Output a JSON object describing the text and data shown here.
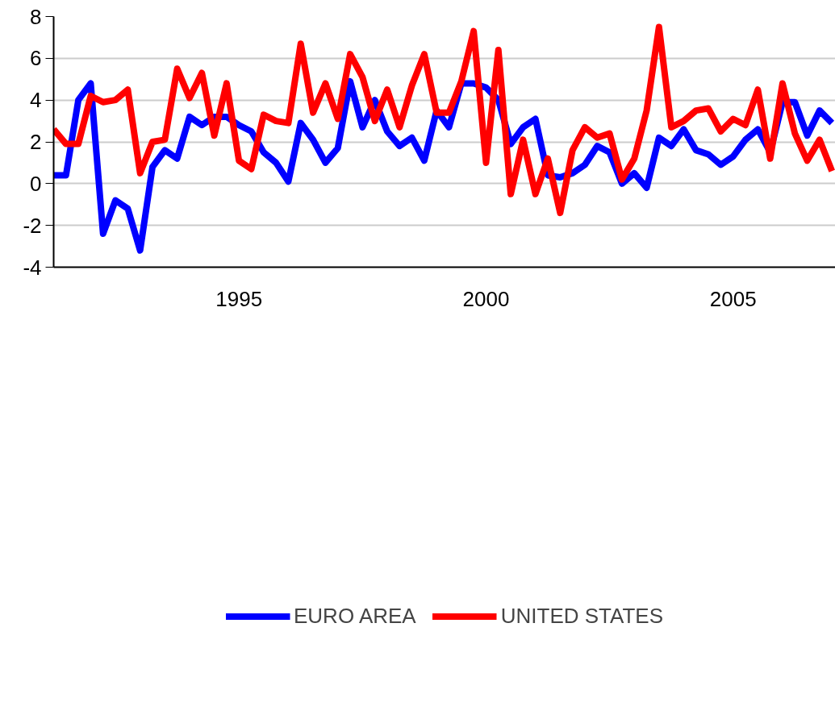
{
  "chart_data": {
    "type": "line",
    "x": [
      1991.25,
      1991.5,
      1991.75,
      1992.0,
      1992.25,
      1992.5,
      1992.75,
      1993.0,
      1993.25,
      1993.5,
      1993.75,
      1994.0,
      1994.25,
      1994.5,
      1994.75,
      1995.0,
      1995.25,
      1995.5,
      1995.75,
      1996.0,
      1996.25,
      1996.5,
      1996.75,
      1997.0,
      1997.25,
      1997.5,
      1997.75,
      1998.0,
      1998.25,
      1998.5,
      1998.75,
      1999.0,
      1999.25,
      1999.5,
      1999.75,
      2000.0,
      2000.25,
      2000.5,
      2000.75,
      2001.0,
      2001.25,
      2001.5,
      2001.75,
      2002.0,
      2002.25,
      2002.5,
      2002.75,
      2003.0,
      2003.25,
      2003.5,
      2003.75,
      2004.0,
      2004.25,
      2004.5,
      2004.75,
      2005.0,
      2005.25,
      2005.5,
      2005.75,
      2006.0,
      2006.25,
      2006.5,
      2006.75,
      2007.0
    ],
    "series": [
      {
        "name": "EURO AREA",
        "color": "#0000ff",
        "values": [
          0.4,
          0.4,
          4.0,
          4.8,
          -2.4,
          -0.8,
          -1.2,
          -3.2,
          0.8,
          1.6,
          1.2,
          3.2,
          2.8,
          3.2,
          3.2,
          2.8,
          2.5,
          1.5,
          1.0,
          0.1,
          2.9,
          2.1,
          1.0,
          1.7,
          4.9,
          2.7,
          4.0,
          2.5,
          1.8,
          2.2,
          1.1,
          3.5,
          2.7,
          4.8,
          4.8,
          4.6,
          4.0,
          1.9,
          2.7,
          3.1,
          0.4,
          0.3,
          0.5,
          0.9,
          1.8,
          1.5,
          0.0,
          0.5,
          -0.2,
          2.2,
          1.8,
          2.6,
          1.6,
          1.4,
          0.9,
          1.3,
          2.1,
          2.6,
          1.5,
          3.9,
          3.9,
          2.3,
          3.5,
          2.9
        ]
      },
      {
        "name": "UNITED STATES",
        "color": "#ff0000",
        "values": [
          2.6,
          1.9,
          1.9,
          4.2,
          3.9,
          4.0,
          4.5,
          0.5,
          2.0,
          2.1,
          5.5,
          4.1,
          5.3,
          2.3,
          4.8,
          1.1,
          0.7,
          3.3,
          3.0,
          2.9,
          6.7,
          3.4,
          4.8,
          3.1,
          6.2,
          5.1,
          3.0,
          4.5,
          2.7,
          4.7,
          6.2,
          3.4,
          3.4,
          4.9,
          7.3,
          1.0,
          6.4,
          -0.5,
          2.1,
          -0.5,
          1.2,
          -1.4,
          1.6,
          2.7,
          2.2,
          2.4,
          0.2,
          1.2,
          3.5,
          7.5,
          2.7,
          3.0,
          3.5,
          3.6,
          2.5,
          3.1,
          2.8,
          4.5,
          1.2,
          4.8,
          2.4,
          1.1,
          2.1,
          0.6
        ]
      }
    ],
    "xlim": [
      1991.25,
      2007.07
    ],
    "xticks": [
      1995,
      2000,
      2005
    ],
    "ylim": [
      -4,
      8
    ],
    "yticks": [
      -4,
      -2,
      0,
      2,
      4,
      6,
      8
    ],
    "grid": "y",
    "legend": "bottom",
    "line_style": "solid"
  }
}
